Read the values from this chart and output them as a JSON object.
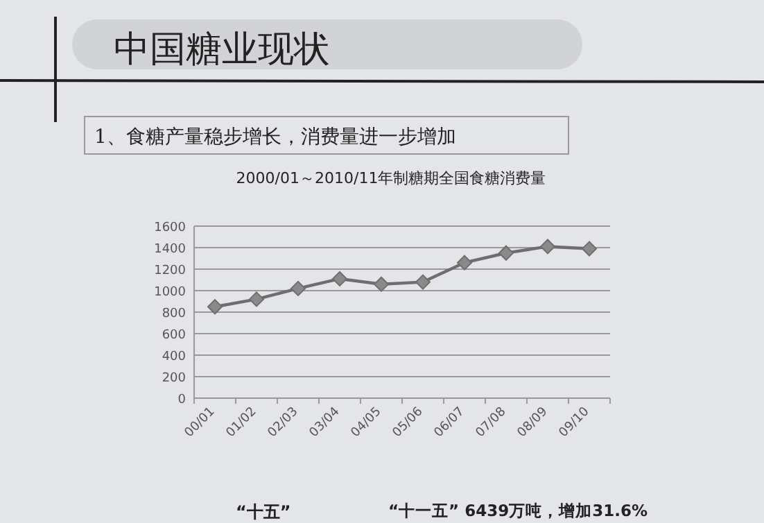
{
  "chart_data": {
    "type": "line",
    "title": "中国糖业现状",
    "subtitle": "1、食糖产量稳步增长，消费量进一步增加",
    "annotations": [
      "2000/01～2010/11年制糖期全国食糖消费量",
      "“十五”",
      "“十一五” 6439万吨，增加31.6%"
    ],
    "categories": [
      "00/01",
      "01/02",
      "02/03",
      "03/04",
      "04/05",
      "05/06",
      "06/07",
      "07/08",
      "08/09",
      "09/10"
    ],
    "series": [
      {
        "color": "#6e6e6e",
        "values": [
          850,
          920,
          1020,
          1110,
          1060,
          1080,
          1260,
          1350,
          1410,
          1390
        ]
      }
    ],
    "ylim": [
      0,
      1600
    ],
    "yticks": [
      0,
      200,
      400,
      600,
      800,
      1000,
      1200,
      1400,
      1600
    ],
    "grid": "y",
    "marker": "diamond",
    "line_style": "solid"
  }
}
